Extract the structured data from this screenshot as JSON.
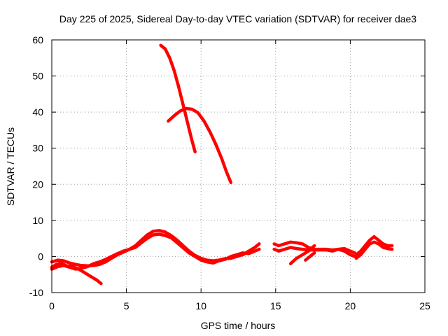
{
  "chart_data": {
    "type": "line",
    "title": "Day 225 of 2025, Sidereal Day-to-day VTEC variation (SDTVAR) for receiver dae3",
    "xlabel": "GPS time / hours",
    "ylabel": "SDTVAR / TECUs",
    "xlim": [
      0,
      25
    ],
    "ylim": [
      -10,
      60
    ],
    "xticks": [
      0,
      5,
      10,
      15,
      20,
      25
    ],
    "yticks": [
      -10,
      0,
      10,
      20,
      30,
      40,
      50,
      60
    ],
    "x_tick_labels": [
      "0",
      "5",
      "10",
      "15",
      "20",
      "25"
    ],
    "y_tick_labels": [
      "-10",
      "0",
      "10",
      "20",
      "30",
      "40",
      "50",
      "60"
    ],
    "grid": true,
    "legend": "none",
    "color": "#ff0000",
    "series": [
      {
        "x": [
          7.3,
          7.6,
          7.9,
          8.2,
          8.5,
          8.8,
          9.1,
          9.4,
          9.6
        ],
        "y": [
          58.5,
          57.5,
          55.0,
          51.5,
          47.0,
          42.0,
          37.0,
          32.0,
          29.0
        ]
      },
      {
        "x": [
          7.8,
          8.2,
          8.6,
          9.0,
          9.4,
          9.8,
          10.2,
          10.6,
          11.0,
          11.4,
          11.7,
          12.0
        ],
        "y": [
          37.5,
          39.0,
          40.3,
          41.0,
          40.8,
          39.8,
          37.5,
          34.5,
          31.0,
          27.0,
          23.5,
          20.5
        ]
      },
      {
        "x": [
          0.0,
          0.3,
          0.6,
          1.0,
          1.4,
          1.8,
          2.2,
          2.6,
          3.0,
          3.3
        ],
        "y": [
          -3.0,
          -2.2,
          -1.8,
          -2.6,
          -2.8,
          -3.5,
          -4.5,
          -5.5,
          -6.5,
          -7.5
        ]
      },
      {
        "x": [
          0.0,
          0.4,
          0.8,
          1.2,
          1.6,
          2.0,
          2.4,
          2.8,
          3.2,
          3.6,
          4.0,
          4.4,
          4.8,
          5.2,
          5.6,
          6.0,
          6.4,
          6.8,
          7.2,
          7.6,
          8.0,
          8.4,
          8.8,
          9.2,
          9.6,
          10.0,
          10.4,
          10.8,
          11.2,
          11.6,
          12.0,
          12.4,
          12.8,
          13.2,
          13.6,
          13.9
        ],
        "y": [
          -1.5,
          -1.0,
          -1.2,
          -1.8,
          -2.2,
          -2.5,
          -2.6,
          -2.5,
          -2.2,
          -1.5,
          -0.5,
          0.5,
          1.2,
          2.0,
          3.0,
          4.5,
          6.0,
          7.0,
          7.2,
          6.8,
          5.8,
          4.5,
          3.0,
          1.5,
          0.3,
          -0.5,
          -1.0,
          -1.2,
          -1.0,
          -0.6,
          -0.5,
          0.0,
          0.5,
          1.5,
          2.5,
          3.5
        ]
      },
      {
        "x": [
          0.0,
          0.4,
          0.8,
          1.2,
          1.6,
          2.0,
          2.4,
          2.8,
          3.2,
          3.6,
          4.0,
          4.4,
          4.8,
          5.2,
          5.6,
          6.0,
          6.4,
          6.8,
          7.2,
          7.6,
          8.0,
          8.4,
          8.8,
          9.2,
          9.6,
          10.0,
          10.4,
          10.8,
          11.2,
          11.6,
          12.0,
          12.4,
          12.8,
          13.2,
          13.6,
          13.9
        ],
        "y": [
          -3.5,
          -2.8,
          -2.5,
          -3.0,
          -3.5,
          -3.2,
          -2.8,
          -2.0,
          -1.5,
          -0.8,
          0.0,
          0.8,
          1.5,
          2.0,
          2.5,
          3.8,
          5.0,
          6.0,
          6.2,
          5.8,
          5.2,
          3.8,
          2.4,
          1.0,
          0.0,
          -1.0,
          -1.5,
          -1.8,
          -1.2,
          -0.8,
          0.0,
          0.5,
          1.0,
          0.8,
          1.5,
          2.0
        ]
      },
      {
        "x": [
          14.9,
          15.2,
          15.6,
          16.0,
          16.4,
          16.8,
          17.2,
          17.6,
          18.0,
          18.4,
          18.8,
          19.2,
          19.6,
          20.0,
          20.3
        ],
        "y": [
          3.5,
          3.0,
          3.5,
          4.0,
          3.8,
          3.5,
          2.5,
          2.0,
          2.0,
          2.0,
          1.8,
          2.0,
          2.2,
          1.5,
          1.0
        ]
      },
      {
        "x": [
          14.9,
          15.2,
          15.6,
          16.0,
          16.4,
          16.8,
          17.2,
          17.6,
          18.0,
          18.4,
          18.8,
          19.2,
          19.6,
          20.0,
          20.3
        ],
        "y": [
          2.0,
          1.5,
          2.0,
          2.5,
          2.2,
          2.0,
          1.8,
          1.8,
          1.8,
          1.8,
          1.5,
          2.0,
          1.5,
          0.5,
          0.0
        ]
      },
      {
        "x": [
          16.0,
          16.4,
          16.8,
          17.2,
          17.6
        ],
        "y": [
          -2.0,
          -0.5,
          0.5,
          1.5,
          3.0
        ]
      },
      {
        "x": [
          17.0,
          17.3,
          17.6
        ],
        "y": [
          -1.0,
          0.0,
          1.0
        ]
      },
      {
        "x": [
          20.4,
          20.7,
          21.0,
          21.3,
          21.6,
          21.9,
          22.2,
          22.5,
          22.8
        ],
        "y": [
          0.5,
          1.5,
          3.0,
          4.5,
          5.5,
          4.5,
          3.5,
          3.0,
          3.0
        ]
      },
      {
        "x": [
          20.4,
          20.7,
          21.0,
          21.3,
          21.6,
          21.9,
          22.2,
          22.5,
          22.8
        ],
        "y": [
          -0.5,
          0.5,
          2.0,
          3.5,
          4.0,
          3.5,
          2.5,
          2.2,
          2.0
        ]
      }
    ]
  }
}
